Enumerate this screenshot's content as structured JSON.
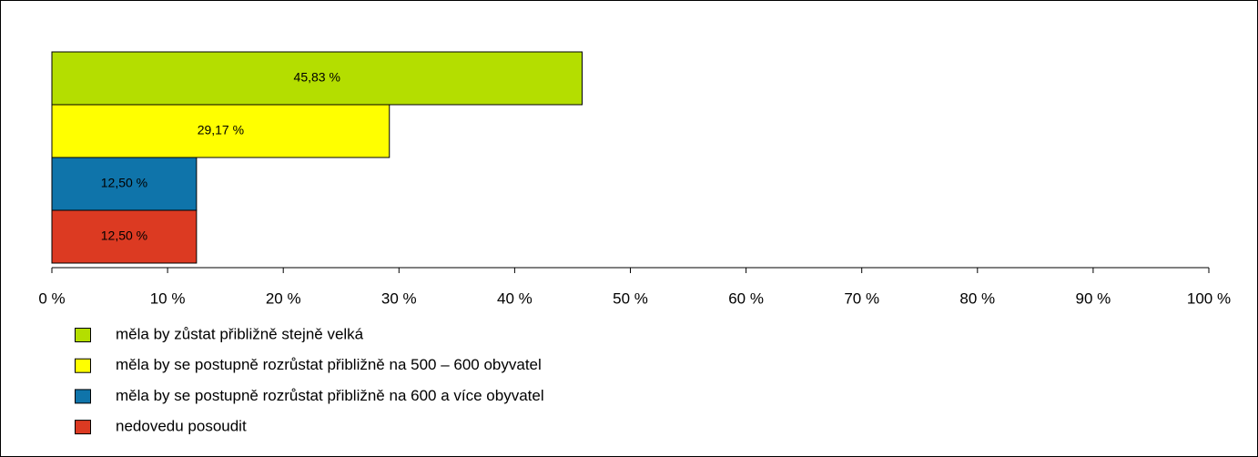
{
  "chart_data": {
    "type": "bar",
    "orientation": "horizontal",
    "series": [
      {
        "name": "měla by zůstat přibližně stejně velká",
        "color": "#b4de00",
        "values": [
          45.83
        ],
        "value_labels": [
          "45,83 %"
        ]
      },
      {
        "name": "měla by se postupně rozrůstat přibližně na 500 – 600 obyvatel",
        "color": "#ffff00",
        "values": [
          29.17
        ],
        "value_labels": [
          "29,17 %"
        ]
      },
      {
        "name": "měla by se postupně rozrůstat přibližně na 600 a více obyvatel",
        "color": "#0f74aa",
        "values": [
          12.5
        ],
        "value_labels": [
          "12,50 %"
        ]
      },
      {
        "name": "nedovedu posoudit",
        "color": "#dc3a22",
        "values": [
          12.5
        ],
        "value_labels": [
          "12,50 %"
        ]
      }
    ],
    "xlim": [
      0,
      100
    ],
    "xticks": [
      {
        "value": 0,
        "label": "0 %"
      },
      {
        "value": 10,
        "label": "10 %"
      },
      {
        "value": 20,
        "label": "20 %"
      },
      {
        "value": 30,
        "label": "30 %"
      },
      {
        "value": 40,
        "label": "40 %"
      },
      {
        "value": 50,
        "label": "50 %"
      },
      {
        "value": 60,
        "label": "60 %"
      },
      {
        "value": 70,
        "label": "70 %"
      },
      {
        "value": 80,
        "label": "80 %"
      },
      {
        "value": 90,
        "label": "90 %"
      },
      {
        "value": 100,
        "label": "100 %"
      }
    ],
    "grid": false,
    "legend": "bottom-left"
  }
}
